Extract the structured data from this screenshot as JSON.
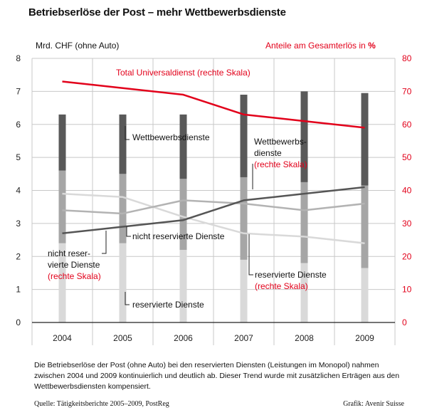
{
  "title": "Betriebserlöse der Post – mehr Wettbewerbsdienste",
  "caption": "Die Betriebserlöse der Post (ohne Auto) bei den reservierten Diensten (Leistungen im Monopol) nahmen zwischen 2004 und 2009 kontinuierlich und deutlich ab. Dieser Trend wurde mit zusätzlichen Erträgen aus den Wettbewerbsdiensten kompensiert.",
  "source": "Quelle: Tätigkeitsberichte 2005–2009, PostReg",
  "credit": "Grafik: Avenir Suisse",
  "colors": {
    "reserved": "#d9d9d9",
    "nonreserved": "#a6a6a6",
    "competition": "#595959",
    "universal": "#e2001a",
    "line_competition": "#555555",
    "line_nonreserved": "#b3b3b3",
    "line_reserved": "#d9d9d9"
  },
  "chart_data": {
    "type": "bar",
    "stacked": true,
    "categories": [
      "2004",
      "2005",
      "2006",
      "2007",
      "2008",
      "2009"
    ],
    "ylabel": "Mrd. CHF (ohne Auto)",
    "ylim": [
      0,
      8
    ],
    "yticks": [
      "0",
      "1",
      "2",
      "3",
      "4",
      "5",
      "6",
      "7",
      "8"
    ],
    "y2label": "Anteile am Gesamterlös in %",
    "y2label_suffix": "%",
    "y2lim": [
      0,
      80
    ],
    "y2ticks": [
      "0",
      "10",
      "20",
      "30",
      "40",
      "50",
      "60",
      "70",
      "80"
    ],
    "series": [
      {
        "name": "reservierte Dienste",
        "values": [
          2.4,
          2.4,
          2.2,
          1.9,
          1.8,
          1.65
        ],
        "axis": "left"
      },
      {
        "name": "nicht reservierte Dienste",
        "values": [
          2.2,
          2.1,
          2.15,
          2.5,
          2.45,
          2.5
        ],
        "axis": "left"
      },
      {
        "name": "Wettbewerbsdienste",
        "values": [
          1.7,
          1.8,
          1.95,
          2.5,
          2.75,
          2.8
        ],
        "axis": "left"
      }
    ],
    "lines": [
      {
        "name": "Total Universaldienst",
        "values": [
          73,
          71,
          69,
          63,
          61,
          59
        ],
        "axis": "right"
      },
      {
        "name": "Wettbewerbsdienste",
        "values": [
          27,
          29,
          31,
          37,
          39,
          41
        ],
        "axis": "right"
      },
      {
        "name": "nicht reservierte Dienste",
        "values": [
          34,
          33,
          37,
          36,
          34,
          36
        ],
        "axis": "right"
      },
      {
        "name": "reservierte Dienste",
        "values": [
          39,
          38,
          32,
          27,
          26,
          24
        ],
        "axis": "right"
      }
    ],
    "annotations": {
      "universal": "Total Universaldienst (rechte Skala)",
      "competition_bar": "Wettbewerbsdienste",
      "competition_line_1": "Wettbewerbs-",
      "competition_line_2": "dienste",
      "competition_line_3": "(rechte Skala)",
      "nonreserved_bar": "nicht reservierte Dienste",
      "nonreserved_line_1": "nicht reser-",
      "nonreserved_line_2": "vierte Dienste",
      "nonreserved_line_3": "(rechte Skala)",
      "reserved_bar": "reservierte Dienste",
      "reserved_line_1": "reservierte Dienste",
      "reserved_line_2": "(rechte Skala)"
    }
  }
}
